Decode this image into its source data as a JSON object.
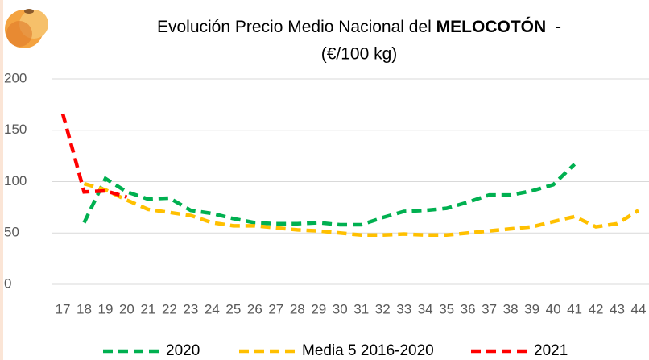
{
  "chart_data": {
    "type": "line",
    "title": {
      "line1": "Evolución Precio Medio Nacional del",
      "bold": "MELOCOTÓN",
      "dash": "-",
      "line2": "(€/100 kg)"
    },
    "categories": [
      "17",
      "18",
      "19",
      "20",
      "21",
      "22",
      "23",
      "24",
      "25",
      "26",
      "27",
      "28",
      "29",
      "30",
      "31",
      "32",
      "33",
      "34",
      "35",
      "36",
      "37",
      "38",
      "39",
      "40",
      "41",
      "42",
      "43",
      "44"
    ],
    "series": [
      {
        "name": "2020",
        "color": "#00b050",
        "values": [
          null,
          60,
          103,
          90,
          83,
          84,
          72,
          69,
          64,
          60,
          59,
          59,
          60,
          58,
          58,
          65,
          71,
          72,
          74,
          80,
          87,
          87,
          91,
          97,
          117,
          null,
          null,
          null
        ]
      },
      {
        "name": "Media 5 2016-2020",
        "color": "#ffc000",
        "values": [
          null,
          98,
          92,
          82,
          73,
          70,
          67,
          60,
          57,
          57,
          55,
          53,
          52,
          50,
          48,
          48,
          49,
          48,
          48,
          50,
          52,
          54,
          56,
          61,
          66,
          56,
          59,
          72
        ]
      },
      {
        "name": "2021",
        "color": "#ff0000",
        "values": [
          166,
          90,
          91,
          85,
          null,
          null,
          null,
          null,
          null,
          null,
          null,
          null,
          null,
          null,
          null,
          null,
          null,
          null,
          null,
          null,
          null,
          null,
          null,
          null,
          null,
          null,
          null,
          null
        ]
      }
    ],
    "ylim": [
      0,
      200
    ],
    "yticks": [
      0,
      50,
      100,
      150,
      200
    ],
    "grid": true,
    "legend": "bottom"
  }
}
